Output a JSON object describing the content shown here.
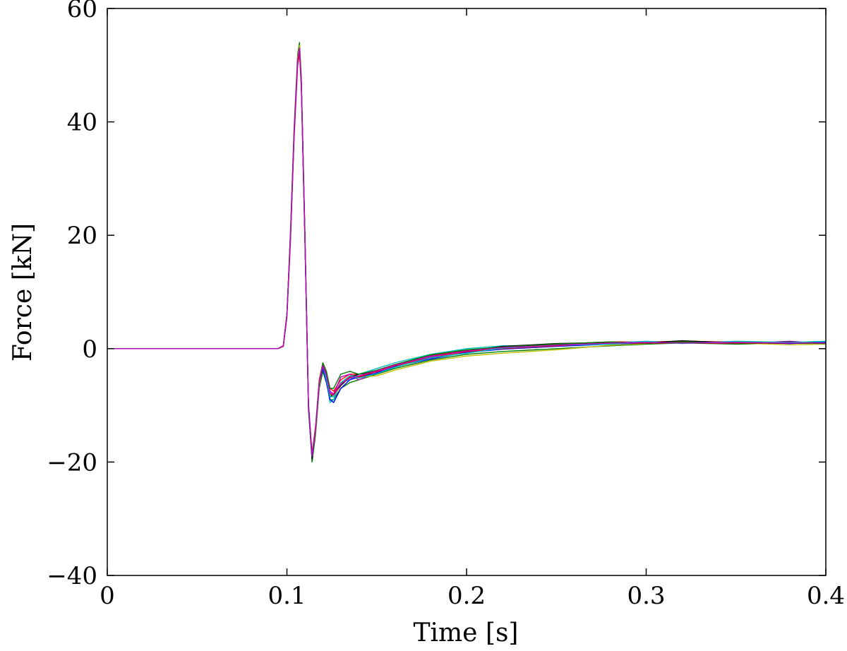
{
  "chart_data": {
    "type": "line",
    "title": "",
    "xlabel": "Time [s]",
    "ylabel": "Force [kN]",
    "xlim": [
      0,
      0.4
    ],
    "ylim": [
      -40,
      60
    ],
    "xticks": [
      0,
      0.1,
      0.2,
      0.3,
      0.4
    ],
    "xtick_labels": [
      "0",
      "0.1",
      "0.2",
      "0.3",
      "0.4"
    ],
    "yticks": [
      -40,
      -20,
      0,
      20,
      40,
      60
    ],
    "ytick_labels": [
      "−40",
      "−20",
      "0",
      "20",
      "40",
      "60"
    ],
    "grid": false,
    "legend": "none",
    "series_count": 12,
    "series_colors": [
      "#0000ff",
      "#008000",
      "#ff0000",
      "#00bfbf",
      "#bf00bf",
      "#bfbf00",
      "#000000",
      "#0000ff",
      "#008000",
      "#ff0000",
      "#00bfbf",
      "#bf00bf"
    ],
    "x": [
      0,
      0.095,
      0.098,
      0.1,
      0.102,
      0.104,
      0.106,
      0.107,
      0.108,
      0.11,
      0.112,
      0.114,
      0.116,
      0.118,
      0.12,
      0.122,
      0.124,
      0.126,
      0.13,
      0.135,
      0.14,
      0.15,
      0.16,
      0.18,
      0.2,
      0.22,
      0.25,
      0.28,
      0.3,
      0.32,
      0.35,
      0.38,
      0.4
    ],
    "series": [
      {
        "values": [
          0,
          0,
          0.5,
          6,
          20,
          38,
          51,
          53,
          47,
          20,
          -10,
          -19,
          -14,
          -6,
          -3,
          -5,
          -8,
          -8,
          -6,
          -5,
          -5,
          -4,
          -3,
          -1.5,
          -0.5,
          0,
          0.5,
          1,
          1,
          1,
          1,
          1,
          1
        ]
      },
      {
        "values": [
          0,
          0,
          0.5,
          6,
          21,
          39,
          52,
          54,
          48,
          21,
          -10,
          -20,
          -15,
          -7,
          -4,
          -6,
          -9,
          -9,
          -7,
          -6,
          -5.5,
          -4.5,
          -3.5,
          -2,
          -1,
          -0.5,
          0,
          0.5,
          0.8,
          1,
          0.8,
          1,
          0.8
        ]
      },
      {
        "values": [
          0,
          0,
          0.4,
          5.5,
          19,
          37,
          50,
          52,
          46,
          19,
          -9.5,
          -18.5,
          -13.5,
          -5.5,
          -2.5,
          -4.5,
          -7,
          -7.5,
          -5.5,
          -4.5,
          -4.5,
          -4,
          -3,
          -1.2,
          -0.3,
          0.3,
          0.8,
          1.2,
          1.2,
          1.3,
          1.2,
          1.1,
          1
        ]
      },
      {
        "values": [
          0,
          0,
          0.5,
          6,
          20,
          38,
          51,
          53,
          47,
          20,
          -11,
          -19.5,
          -14,
          -6,
          -3.5,
          -5.5,
          -9.5,
          -9,
          -6,
          -5.5,
          -4.5,
          -3.5,
          -2.5,
          -1,
          0,
          0.5,
          0.6,
          1,
          1.3,
          1,
          1.2,
          0.9,
          1.2
        ]
      },
      {
        "values": [
          0,
          0,
          0.5,
          6,
          20,
          38,
          51,
          53,
          47,
          20,
          -10,
          -19,
          -14,
          -6,
          -3,
          -4.5,
          -7.5,
          -8,
          -5,
          -4.5,
          -5.5,
          -4.2,
          -2.8,
          -1.3,
          -0.6,
          0.2,
          0.7,
          0.9,
          1.1,
          1.1,
          0.9,
          1.3,
          0.9
        ]
      },
      {
        "values": [
          0,
          0,
          0.5,
          6,
          20.5,
          38.5,
          51.5,
          53.5,
          47.5,
          20.5,
          -10,
          -19,
          -14.5,
          -6.5,
          -3,
          -5,
          -8,
          -8.5,
          -6.5,
          -5,
          -5,
          -4.8,
          -3.8,
          -2.2,
          -1.3,
          -0.8,
          -0.2,
          0.6,
          0.9,
          1.2,
          1,
          0.7,
          0.8
        ]
      },
      {
        "values": [
          0,
          0,
          0.5,
          6,
          20,
          38,
          51,
          53,
          47,
          20,
          -10.5,
          -19.5,
          -14,
          -6,
          -3,
          -5,
          -8.5,
          -8,
          -6.5,
          -5,
          -4.5,
          -4,
          -3,
          -1.5,
          -0.4,
          0.4,
          0.9,
          1.1,
          1,
          1.4,
          1,
          1.2,
          1
        ]
      },
      {
        "values": [
          0,
          0,
          0.5,
          6,
          20,
          38,
          51,
          53,
          47,
          20,
          -10,
          -19,
          -14,
          -6,
          -3.5,
          -6,
          -9,
          -9.5,
          -7,
          -5.5,
          -5,
          -4.3,
          -3.2,
          -1.8,
          -0.7,
          -0.1,
          0.4,
          0.8,
          1,
          1.1,
          1.1,
          0.9,
          1.1
        ]
      },
      {
        "values": [
          0,
          0,
          0.5,
          6,
          20,
          38,
          51,
          53,
          47,
          20,
          -10,
          -19,
          -14,
          -6,
          -2.5,
          -4,
          -7,
          -7,
          -4.5,
          -4,
          -4.5,
          -3.8,
          -2.8,
          -1.1,
          -0.2,
          0.3,
          0.8,
          1.2,
          0.9,
          1.2,
          0.9,
          1,
          0.9
        ]
      },
      {
        "values": [
          0,
          0,
          0.5,
          6,
          20,
          38,
          51,
          53,
          47,
          20,
          -10,
          -19,
          -14,
          -6,
          -3,
          -5,
          -8,
          -8,
          -6,
          -5,
          -5,
          -4,
          -3,
          -1.5,
          -0.5,
          0,
          0.5,
          1,
          1,
          1,
          1,
          1,
          1
        ]
      },
      {
        "values": [
          0,
          0,
          0.5,
          6,
          20,
          38,
          51,
          53,
          47,
          20,
          -10,
          -19,
          -14,
          -6,
          -3,
          -5.5,
          -8.5,
          -8.5,
          -6,
          -4.8,
          -5.2,
          -4.4,
          -3.3,
          -1.6,
          -0.8,
          0.1,
          0.6,
          0.8,
          1.2,
          0.9,
          1.3,
          1.1,
          1.3
        ]
      },
      {
        "values": [
          0,
          0,
          0.5,
          6,
          20,
          38,
          51,
          53,
          47,
          20,
          -10,
          -19,
          -14,
          -6,
          -3,
          -4.8,
          -7.8,
          -8.2,
          -6.2,
          -5.2,
          -4.8,
          -3.9,
          -2.9,
          -1.4,
          -0.4,
          0.2,
          0.6,
          1,
          1.1,
          1,
          1.1,
          1,
          1
        ]
      }
    ]
  }
}
